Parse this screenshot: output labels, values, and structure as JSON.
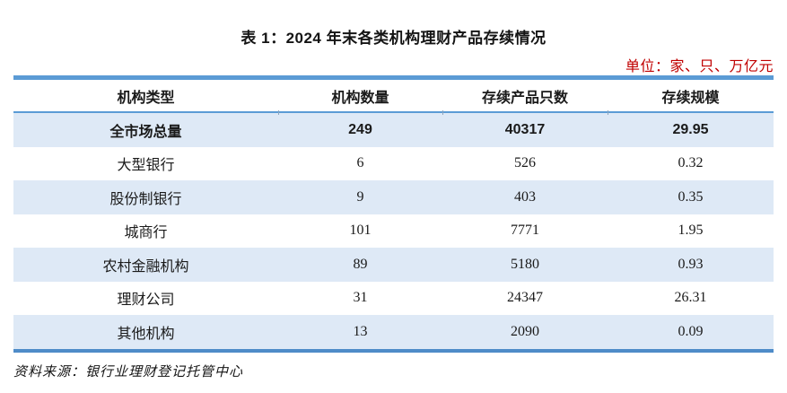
{
  "title": "表 1：2024 年末各类机构理财产品存续情况",
  "unit_note": "单位：家、只、万亿元",
  "source_note": "资料来源：银行业理财登记托管中心",
  "colors": {
    "accent_blue": "#5B9BD5",
    "accent_blue_dark": "#4E8BC8",
    "band_blue": "#DEE9F6",
    "unit_red": "#C00000"
  },
  "table": {
    "headers": [
      "机构类型",
      "机构数量",
      "存续产品只数",
      "存续规模"
    ],
    "rows": [
      {
        "type": "全市场总量",
        "count": "249",
        "products": "40317",
        "scale": "29.95"
      },
      {
        "type": "大型银行",
        "count": "6",
        "products": "526",
        "scale": "0.32"
      },
      {
        "type": "股份制银行",
        "count": "9",
        "products": "403",
        "scale": "0.35"
      },
      {
        "type": "城商行",
        "count": "101",
        "products": "7771",
        "scale": "1.95"
      },
      {
        "type": "农村金融机构",
        "count": "89",
        "products": "5180",
        "scale": "0.93"
      },
      {
        "type": "理财公司",
        "count": "31",
        "products": "24347",
        "scale": "26.31"
      },
      {
        "type": "其他机构",
        "count": "13",
        "products": "2090",
        "scale": "0.09"
      }
    ]
  }
}
